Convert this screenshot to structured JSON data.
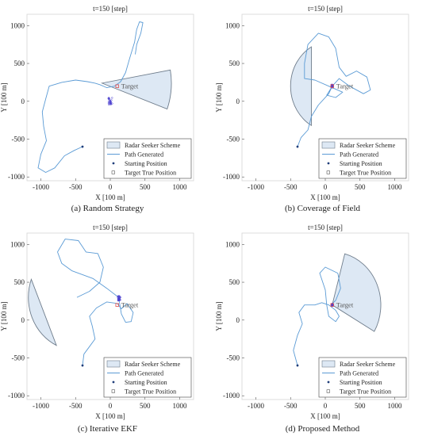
{
  "chart_data": [
    {
      "type": "line",
      "panel_title": "t=150 [step]",
      "caption": "(a) Random Strategy",
      "xlabel": "X [100 m]",
      "ylabel": "Y [100 m]",
      "xlim": [
        -1200,
        1200
      ],
      "ylim": [
        -1050,
        1150
      ],
      "xticks": [
        "-1000",
        "-500",
        "0",
        "500",
        "1000"
      ],
      "yticks": [
        "1000",
        "500",
        "0",
        "-500",
        "-1000"
      ],
      "legend": {
        "placement": "bottom-right",
        "entries": [
          "Radar Seeker Scheme",
          "Path Generated",
          "Starting Position",
          "Target True Position"
        ]
      },
      "sector": {
        "apex": [
          -120,
          240
        ],
        "radius": 1000,
        "angle_from": -20,
        "angle_to": 10
      },
      "sector_shape": "wedge",
      "path": [
        [
          -400,
          -600
        ],
        [
          -520,
          -650
        ],
        [
          -660,
          -720
        ],
        [
          -800,
          -880
        ],
        [
          -930,
          -940
        ],
        [
          -1040,
          -880
        ],
        [
          -1000,
          -700
        ],
        [
          -920,
          -520
        ],
        [
          -960,
          -330
        ],
        [
          -980,
          -140
        ],
        [
          -930,
          30
        ],
        [
          -880,
          200
        ],
        [
          -700,
          250
        ],
        [
          -500,
          280
        ],
        [
          -330,
          260
        ],
        [
          -220,
          240
        ],
        [
          -150,
          220
        ],
        [
          -50,
          180
        ],
        [
          60,
          200
        ],
        [
          150,
          260
        ],
        [
          220,
          380
        ],
        [
          280,
          570
        ],
        [
          350,
          780
        ],
        [
          380,
          950
        ],
        [
          420,
          1050
        ],
        [
          470,
          1040
        ],
        [
          440,
          900
        ],
        [
          380,
          750
        ],
        [
          360,
          620
        ]
      ],
      "start": [
        -400,
        -600
      ],
      "target": [
        100,
        200
      ],
      "target_label": "Target",
      "estimates_center": [
        0,
        0
      ],
      "estimates_spread": 60
    },
    {
      "type": "line",
      "panel_title": "t=150 [step]",
      "caption": "(b) Coverage of Field",
      "xlabel": "X [100 m]",
      "ylabel": "Y [100 m]",
      "xlim": [
        -1200,
        1200
      ],
      "ylim": [
        -1050,
        1150
      ],
      "xticks": [
        "-1000",
        "-500",
        "0",
        "500",
        "1000"
      ],
      "yticks": [
        "1000",
        "500",
        "0",
        "-500",
        "-1000"
      ],
      "legend": {
        "placement": "bottom-right",
        "entries": [
          "Radar Seeker Scheme",
          "Path Generated",
          "Starting Position",
          "Target True Position"
        ]
      },
      "sector": {
        "apex": [
          100,
          200
        ],
        "radius": 600,
        "angle_from": 120,
        "angle_to": 240
      },
      "sector_shape": "arc",
      "path": [
        [
          -400,
          -600
        ],
        [
          -350,
          -480
        ],
        [
          -250,
          -380
        ],
        [
          -200,
          -200
        ],
        [
          -100,
          -50
        ],
        [
          50,
          100
        ],
        [
          100,
          200
        ],
        [
          200,
          300
        ],
        [
          350,
          200
        ],
        [
          550,
          100
        ],
        [
          650,
          150
        ],
        [
          600,
          320
        ],
        [
          450,
          400
        ],
        [
          300,
          330
        ],
        [
          200,
          450
        ],
        [
          150,
          700
        ],
        [
          50,
          850
        ],
        [
          -100,
          900
        ],
        [
          -250,
          750
        ],
        [
          -300,
          500
        ],
        [
          -300,
          300
        ],
        [
          -150,
          280
        ],
        [
          50,
          200
        ],
        [
          250,
          120
        ],
        [
          150,
          50
        ],
        [
          20,
          80
        ],
        [
          100,
          200
        ]
      ],
      "start": [
        -400,
        -600
      ],
      "target": [
        100,
        200
      ],
      "target_label": "Target",
      "estimates_center": [
        100,
        200
      ],
      "estimates_spread": 25
    },
    {
      "type": "line",
      "panel_title": "t=150 [step]",
      "caption": "(c) Iterative EKF",
      "xlabel": "X [100 m]",
      "ylabel": "Y [100 m]",
      "xlim": [
        -1200,
        1200
      ],
      "ylim": [
        -1050,
        1150
      ],
      "xticks": [
        "-1000",
        "-500",
        "0",
        "500",
        "1000"
      ],
      "yticks": [
        "1000",
        "500",
        "0",
        "-500",
        "-1000"
      ],
      "legend": {
        "placement": "bottom-right",
        "entries": [
          "Radar Seeker Scheme",
          "Path Generated",
          "Starting Position",
          "Target True Position"
        ]
      },
      "sector": {
        "apex": [
          -480,
          300
        ],
        "radius": 700,
        "angle_from": 160,
        "angle_to": 245
      },
      "sector_shape": "arc",
      "path": [
        [
          -400,
          -600
        ],
        [
          -380,
          -450
        ],
        [
          -300,
          -350
        ],
        [
          -220,
          -250
        ],
        [
          -260,
          -80
        ],
        [
          -300,
          50
        ],
        [
          -200,
          160
        ],
        [
          -50,
          240
        ],
        [
          100,
          220
        ],
        [
          160,
          150
        ],
        [
          240,
          220
        ],
        [
          330,
          100
        ],
        [
          300,
          -20
        ],
        [
          220,
          -30
        ],
        [
          160,
          80
        ],
        [
          120,
          300
        ],
        [
          -50,
          420
        ],
        [
          -250,
          550
        ],
        [
          -550,
          650
        ],
        [
          -700,
          750
        ],
        [
          -760,
          900
        ],
        [
          -650,
          1070
        ],
        [
          -460,
          1050
        ],
        [
          -350,
          900
        ],
        [
          -180,
          880
        ],
        [
          -100,
          700
        ],
        [
          -150,
          500
        ],
        [
          -300,
          380
        ],
        [
          -480,
          300
        ]
      ],
      "start": [
        -400,
        -600
      ],
      "target": [
        100,
        200
      ],
      "target_label": "Target",
      "estimates_center": [
        130,
        290
      ],
      "estimates_spread": 40
    },
    {
      "type": "line",
      "panel_title": "t=150 [step]",
      "caption": "(d) Proposed Method",
      "xlabel": "X [100 m]",
      "ylabel": "Y [100 m]",
      "xlim": [
        -1200,
        1200
      ],
      "ylim": [
        -1050,
        1150
      ],
      "xticks": [
        "-1000",
        "-500",
        "0",
        "500",
        "1000"
      ],
      "yticks": [
        "1000",
        "500",
        "0",
        "-500",
        "-1000"
      ],
      "legend": {
        "placement": "bottom-right",
        "entries": [
          "Radar Seeker Scheme",
          "Path Generated",
          "Starting Position",
          "Target True Position"
        ]
      },
      "sector": {
        "apex": [
          100,
          200
        ],
        "radius": 700,
        "angle_from": -30,
        "angle_to": 75
      },
      "sector_shape": "wedge",
      "path": [
        [
          -400,
          -600
        ],
        [
          -460,
          -400
        ],
        [
          -400,
          -200
        ],
        [
          -330,
          -50
        ],
        [
          -380,
          100
        ],
        [
          -300,
          200
        ],
        [
          -150,
          200
        ],
        [
          -50,
          230
        ],
        [
          50,
          200
        ],
        [
          150,
          130
        ],
        [
          200,
          50
        ],
        [
          150,
          -20
        ],
        [
          50,
          50
        ],
        [
          20,
          200
        ],
        [
          0,
          400
        ],
        [
          -80,
          620
        ],
        [
          0,
          700
        ],
        [
          180,
          620
        ],
        [
          220,
          420
        ],
        [
          150,
          260
        ],
        [
          90,
          210
        ],
        [
          80,
          180
        ]
      ],
      "start": [
        -400,
        -600
      ],
      "target": [
        100,
        200
      ],
      "target_label": "Target",
      "estimates_center": [
        100,
        200
      ],
      "estimates_spread": 20
    }
  ],
  "colors": {
    "sector_fill": "#dde8f4",
    "sector_stroke": "#6f7d8c",
    "path": "#5b9bd5",
    "start": "#1f3d7a",
    "target": "#e05050",
    "estimates": "#4b3fd0",
    "axis": "#555555",
    "text": "#222222"
  }
}
